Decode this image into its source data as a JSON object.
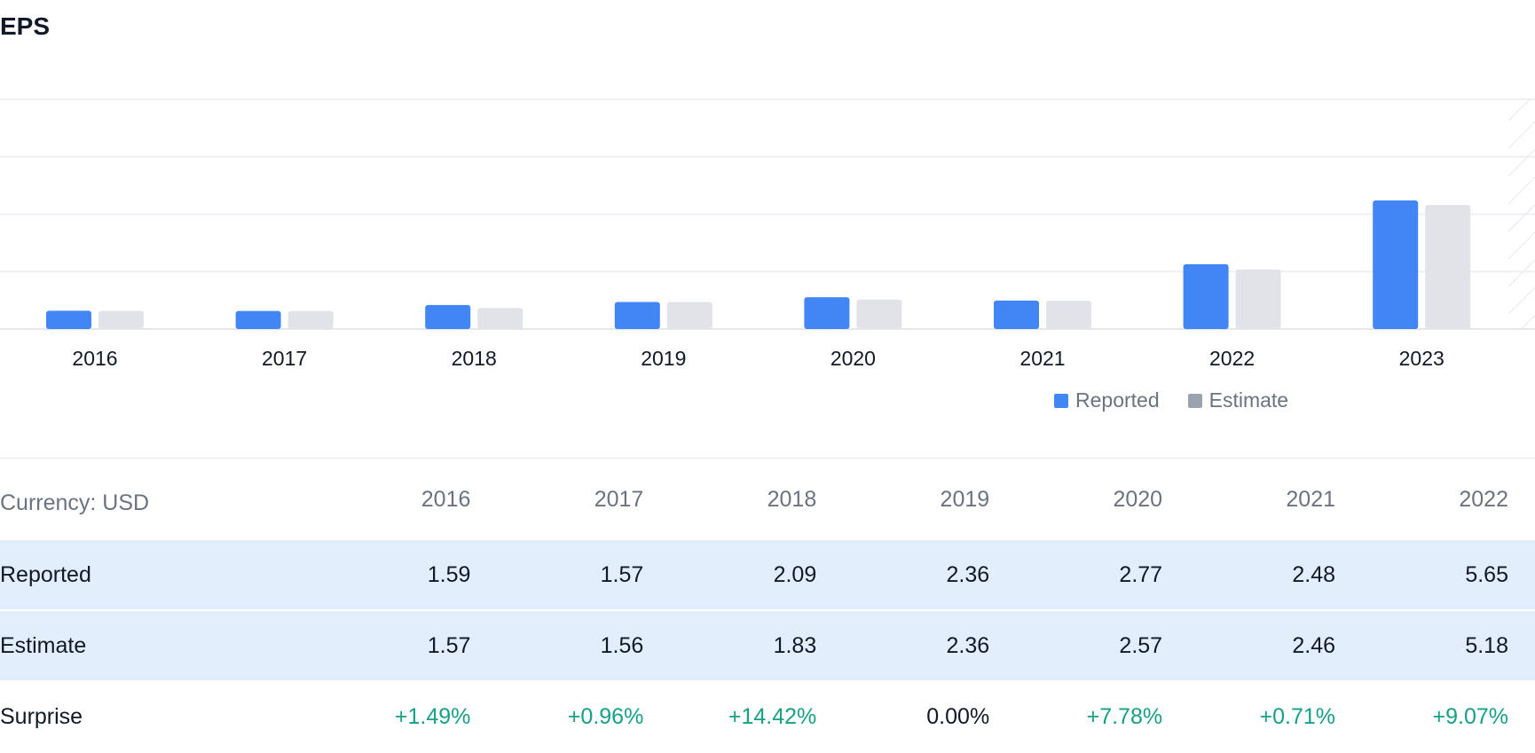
{
  "title": "EPS",
  "colors": {
    "reported": "#4285f4",
    "estimate": "#e1e3e8",
    "legend_estimate": "#9ca3af",
    "positive": "#16a085",
    "row_highlight": "#e2eefc"
  },
  "chart_data": {
    "type": "bar",
    "categories": [
      "2016",
      "2017",
      "2018",
      "2019",
      "2020",
      "2021",
      "2022",
      "2023"
    ],
    "series": [
      {
        "name": "Reported",
        "values": [
          1.59,
          1.57,
          2.09,
          2.36,
          2.77,
          2.48,
          5.65,
          11.2
        ]
      },
      {
        "name": "Estimate",
        "values": [
          1.57,
          1.56,
          1.83,
          2.36,
          2.57,
          2.46,
          5.18,
          10.8
        ]
      }
    ],
    "ylim": [
      0,
      20
    ],
    "grid": true,
    "legend": "bottom-right",
    "forecast_hatch": true
  },
  "legend": {
    "reported": "Reported",
    "estimate": "Estimate"
  },
  "table": {
    "currency_label": "Currency: USD",
    "years": [
      "2016",
      "2017",
      "2018",
      "2019",
      "2020",
      "2021",
      "2022"
    ],
    "rows": [
      {
        "label": "Reported",
        "values": [
          "1.59",
          "1.57",
          "2.09",
          "2.36",
          "2.77",
          "2.48",
          "5.65"
        ]
      },
      {
        "label": "Estimate",
        "values": [
          "1.57",
          "1.56",
          "1.83",
          "2.36",
          "2.57",
          "2.46",
          "5.18"
        ]
      },
      {
        "label": "Surprise",
        "values": [
          "+1.49%",
          "+0.96%",
          "+14.42%",
          "0.00%",
          "+7.78%",
          "+0.71%",
          "+9.07%"
        ]
      }
    ]
  }
}
